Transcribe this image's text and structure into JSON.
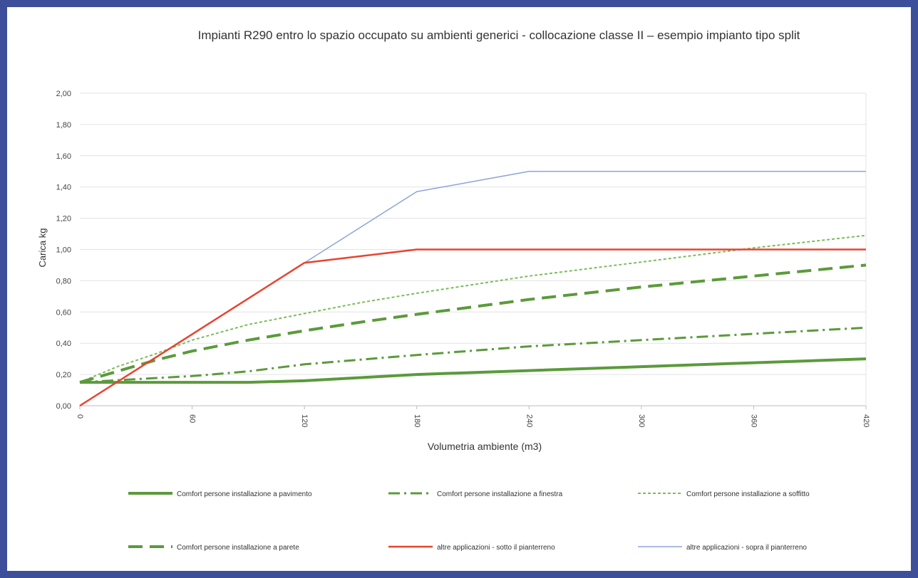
{
  "chart_data": {
    "type": "line",
    "title": "Impianti R290 entro lo spazio occupato su ambienti generici - collocazione classe II – esempio impianto tipo split",
    "xlabel": "Volumetria ambiente (m3)",
    "ylabel": "Carica kg",
    "xlim": [
      0,
      420
    ],
    "ylim": [
      0,
      2
    ],
    "x_ticks": [
      "0",
      "60",
      "120",
      "180",
      "240",
      "300",
      "360",
      "420"
    ],
    "y_ticks": [
      "0,00",
      "0,20",
      "0,40",
      "0,60",
      "0,80",
      "1,00",
      "1,20",
      "1,40",
      "1,60",
      "1,80",
      "2,00"
    ],
    "grid": true,
    "legend_position": "bottom",
    "series": [
      {
        "name": "Comfort persone installazione a pavimento",
        "color": "#5b9a3c",
        "dash": "solid-thick",
        "points": [
          [
            0,
            0.15
          ],
          [
            30,
            0.15
          ],
          [
            60,
            0.15
          ],
          [
            90,
            0.15
          ],
          [
            120,
            0.16
          ],
          [
            150,
            0.18
          ],
          [
            180,
            0.2
          ],
          [
            240,
            0.225
          ],
          [
            300,
            0.25
          ],
          [
            360,
            0.275
          ],
          [
            420,
            0.3
          ]
        ]
      },
      {
        "name": "Comfort persone installazione a finestra",
        "color": "#5b9a3c",
        "dash": "dash-dot",
        "points": [
          [
            0,
            0.15
          ],
          [
            30,
            0.17
          ],
          [
            60,
            0.19
          ],
          [
            90,
            0.22
          ],
          [
            120,
            0.265
          ],
          [
            180,
            0.325
          ],
          [
            240,
            0.38
          ],
          [
            300,
            0.42
          ],
          [
            360,
            0.46
          ],
          [
            420,
            0.5
          ]
        ]
      },
      {
        "name": "Comfort persone installazione a soffitto",
        "color": "#7dbb5a",
        "dash": "dotted",
        "points": [
          [
            0,
            0.15
          ],
          [
            20,
            0.25
          ],
          [
            40,
            0.33
          ],
          [
            60,
            0.42
          ],
          [
            90,
            0.52
          ],
          [
            120,
            0.59
          ],
          [
            150,
            0.66
          ],
          [
            180,
            0.72
          ],
          [
            240,
            0.83
          ],
          [
            300,
            0.92
          ],
          [
            360,
            1.01
          ],
          [
            420,
            1.09
          ]
        ]
      },
      {
        "name": "Comfort persone installazione a parete",
        "color": "#5b9a3c",
        "dash": "long-dash",
        "points": [
          [
            0,
            0.15
          ],
          [
            20,
            0.22
          ],
          [
            40,
            0.29
          ],
          [
            60,
            0.35
          ],
          [
            90,
            0.42
          ],
          [
            120,
            0.48
          ],
          [
            150,
            0.535
          ],
          [
            180,
            0.585
          ],
          [
            240,
            0.68
          ],
          [
            300,
            0.76
          ],
          [
            360,
            0.83
          ],
          [
            420,
            0.9
          ]
        ]
      },
      {
        "name": "altre applicazioni - sotto il pianterreno",
        "color": "#e8432f",
        "dash": "solid",
        "points": [
          [
            0,
            0
          ],
          [
            120,
            0.915
          ],
          [
            180,
            1.0
          ],
          [
            240,
            1.0
          ],
          [
            300,
            1.0
          ],
          [
            360,
            1.0
          ],
          [
            420,
            1.0
          ]
        ]
      },
      {
        "name": "altre applicazioni - sopra il pianterreno",
        "color": "#8da3d8",
        "dash": "solid-thin",
        "points": [
          [
            0,
            0
          ],
          [
            120,
            0.915
          ],
          [
            180,
            1.37
          ],
          [
            240,
            1.5
          ],
          [
            300,
            1.5
          ],
          [
            360,
            1.5
          ],
          [
            420,
            1.5
          ]
        ]
      }
    ]
  }
}
